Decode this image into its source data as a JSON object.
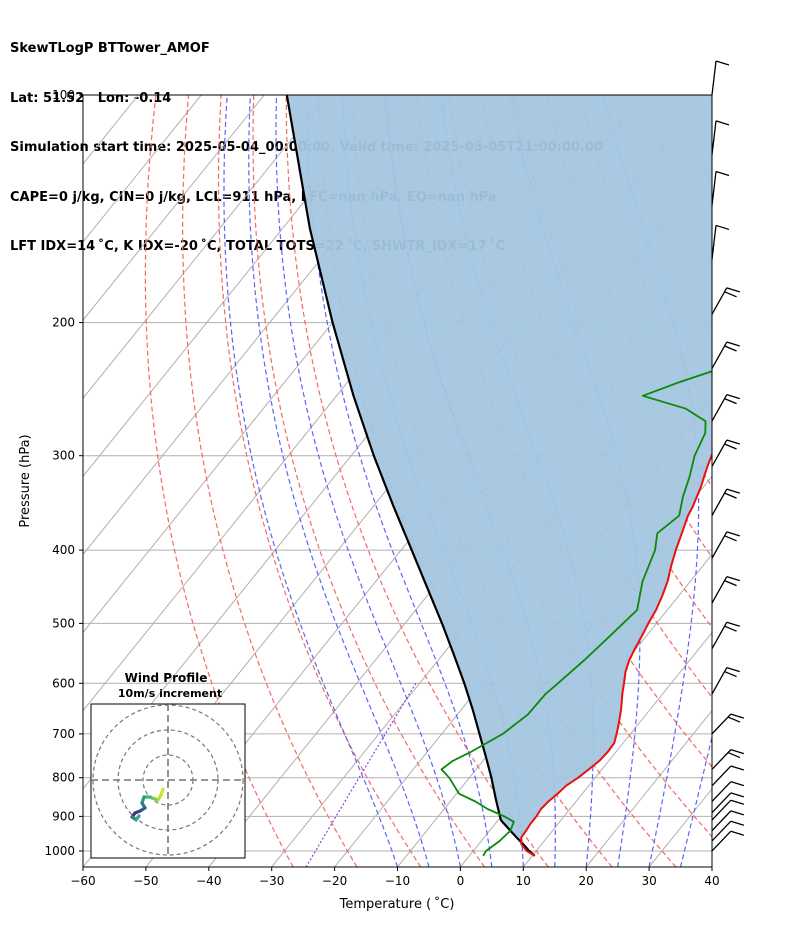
{
  "header": {
    "line1": "SkewTLogP BTTower_AMOF",
    "line2": "Lat: 51.52   Lon: -0.14",
    "line3": "Simulation start time: 2025-05-04_00:00:00, Valid time: 2025-05-05T21:00:00.00",
    "line4": "CAPE=0 j/kg, CIN=0 j/kg, LCL=911 hPa, LFC=nan hPa, EQ=nan hPa",
    "line5": "LFT IDX=14 ˚C, K IDX=-20 ˚C, TOTAL TOTS=22 ˚C, SHWTR_IDX=17 ˚C"
  },
  "chart_data": [
    {
      "type": "skewt-logp",
      "xlabel": "Temperature ( ˚C)",
      "ylabel": "Pressure (hPa)",
      "x_ticks": [
        "−60",
        "−50",
        "−40",
        "−30",
        "−20",
        "−10",
        "0",
        "10",
        "20",
        "30",
        "40"
      ],
      "x_tick_values": [
        -60,
        -50,
        -40,
        -30,
        -20,
        -10,
        0,
        10,
        20,
        30,
        40
      ],
      "y_ticks": [
        "100",
        "200",
        "300",
        "400",
        "500",
        "600",
        "700",
        "800",
        "900",
        "1000"
      ],
      "y_tick_values": [
        100,
        200,
        300,
        400,
        500,
        600,
        700,
        800,
        900,
        1000
      ],
      "xlim_at_surface": [
        -60,
        40
      ],
      "ylim": [
        1050,
        100
      ],
      "yscale": "log",
      "grid": true,
      "colors": {
        "temperature": "#e8110e",
        "dewpoint": "#0a8a0a",
        "parcel": "#000000",
        "shading": "#a3c6df",
        "dry_adiabats": "#f26a66",
        "moist_adiabats": "#5a66f5",
        "mixing_ratio": "#8a3fd8",
        "isotherms": "#b0b0b0"
      },
      "series": [
        {
          "key": "temperature",
          "pressure": [
            1015,
            1000,
            980,
            960,
            940,
            920,
            900,
            880,
            860,
            840,
            820,
            800,
            780,
            760,
            740,
            720,
            700,
            680,
            650,
            620,
            600,
            580,
            560,
            540,
            520,
            500,
            480,
            460,
            440,
            420,
            400,
            380,
            360,
            350,
            340,
            330,
            320,
            310,
            300,
            290,
            280,
            270,
            260,
            250,
            240,
            230,
            220,
            215,
            210,
            205,
            200,
            195,
            190,
            185,
            180,
            175,
            170,
            165,
            160,
            155,
            150,
            145,
            140,
            135,
            130,
            125,
            120,
            115,
            110,
            105,
            100
          ],
          "temp": [
            10.4,
            8.5,
            6.8,
            5.9,
            5.8,
            5.6,
            5.6,
            5.4,
            5.6,
            6.1,
            6.4,
            7.3,
            7.9,
            8.5,
            8.7,
            8.6,
            7.8,
            6.9,
            5.4,
            3.6,
            2.5,
            1.3,
            0.4,
            -0.2,
            -0.7,
            -1.3,
            -1.8,
            -2.6,
            -3.6,
            -5.0,
            -6.3,
            -7.5,
            -8.8,
            -9.2,
            -9.8,
            -10.4,
            -11.2,
            -12.0,
            -12.7,
            -13.3,
            -14.3,
            -15.4,
            -15.2,
            -14.3,
            -13.6,
            -12.7,
            -11.8,
            -11.2,
            -10.3,
            -9.8,
            -9.5,
            -9.1,
            -8.2,
            -7.2,
            -6.0,
            -4.8,
            -3.5,
            -2.0,
            -0.6,
            0.9,
            1.7,
            2.6,
            3.6,
            4.3,
            5.0,
            5.0,
            5.1,
            4.4,
            3.3,
            2.1,
            0.9
          ]
        },
        {
          "key": "dewpoint",
          "pressure": [
            1015,
            1000,
            970,
            940,
            915,
            900,
            880,
            860,
            840,
            800,
            780,
            760,
            740,
            700,
            660,
            620,
            600,
            560,
            520,
            480,
            440,
            400,
            380,
            360,
            340,
            320,
            300,
            280,
            270,
            260,
            250,
            240,
            230,
            220,
            210,
            200,
            190,
            180,
            170,
            160,
            150,
            140,
            130,
            120,
            110,
            100
          ],
          "dewpoint": [
            2.2,
            2.0,
            2.9,
            3.3,
            2.7,
            0.5,
            -3.1,
            -6.0,
            -9.6,
            -13.2,
            -15.5,
            -14.8,
            -13.1,
            -10.3,
            -8.8,
            -8.6,
            -8.0,
            -6.8,
            -5.8,
            -4.8,
            -7.6,
            -9.6,
            -11.4,
            -10.2,
            -12.0,
            -13.5,
            -15.4,
            -16.6,
            -18.1,
            -22.8,
            -31.3,
            -27.3,
            -22.5,
            -18.8,
            -17.9,
            -18.7,
            -21.0,
            -24.3,
            -26.9,
            -27.7,
            -27.0,
            -24.8,
            -22.5,
            -20.6,
            -18.4,
            -15.6
          ]
        },
        {
          "key": "parcel",
          "pressure": [
            1015,
            1000,
            980,
            960,
            940,
            911,
            900,
            850,
            800,
            750,
            700,
            650,
            600,
            550,
            500,
            450,
            400,
            350,
            300,
            250,
            200,
            150,
            100
          ],
          "temp": [
            10.4,
            8.9,
            7.1,
            5.2,
            3.3,
            0.5,
            -0.2,
            -3.3,
            -6.5,
            -10.1,
            -14.0,
            -18.2,
            -22.9,
            -28.2,
            -34.1,
            -40.8,
            -48.3,
            -56.8,
            -66.4,
            -77.3,
            -90.0,
            -105.7,
            -126.4
          ]
        }
      ],
      "wind_barbs": {
        "pressure": [
          100,
          120,
          140,
          165,
          195,
          230,
          270,
          310,
          360,
          410,
          470,
          540,
          620,
          700,
          780,
          820,
          860,
          890,
          910,
          940,
          970,
          1000
        ],
        "description": "wind barbs along right edge (flag direction varies with height)"
      },
      "hodograph": {
        "title": "Wind Profile",
        "subtitle": "10m/s increment"
      }
    }
  ]
}
